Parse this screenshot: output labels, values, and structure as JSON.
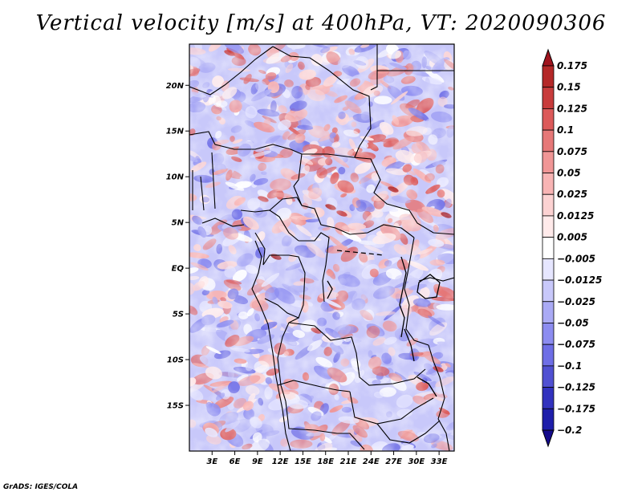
{
  "title": "Vertical velocity [m/s] at 400hPa, VT: 2020090306",
  "credit": "GrADS: IGES/COLA",
  "map": {
    "variable": "Vertical velocity",
    "units": "m/s",
    "level": "400hPa",
    "valid_time": "2020090306",
    "lon_range": [
      0,
      35
    ],
    "lat_range": [
      -20,
      24.5
    ],
    "lat_ticks": [
      {
        "value": 20,
        "label": "20N"
      },
      {
        "value": 15,
        "label": "15N"
      },
      {
        "value": 10,
        "label": "10N"
      },
      {
        "value": 5,
        "label": "5N"
      },
      {
        "value": 0,
        "label": "EQ"
      },
      {
        "value": -5,
        "label": "5S"
      },
      {
        "value": -10,
        "label": "10S"
      },
      {
        "value": -15,
        "label": "15S"
      }
    ],
    "lon_ticks": [
      {
        "value": 3,
        "label": "3E"
      },
      {
        "value": 6,
        "label": "6E"
      },
      {
        "value": 9,
        "label": "9E"
      },
      {
        "value": 12,
        "label": "12E"
      },
      {
        "value": 15,
        "label": "15E"
      },
      {
        "value": 18,
        "label": "18E"
      },
      {
        "value": 21,
        "label": "21E"
      },
      {
        "value": 24,
        "label": "24E"
      },
      {
        "value": 27,
        "label": "27E"
      },
      {
        "value": 30,
        "label": "30E"
      },
      {
        "value": 33,
        "label": "33E"
      }
    ]
  },
  "colorbar": {
    "labels": [
      "0.175",
      "0.15",
      "0.125",
      "0.1",
      "0.075",
      "0.05",
      "0.025",
      "0.0125",
      "0.005",
      "−0.005",
      "−0.0125",
      "−0.025",
      "−0.05",
      "−0.075",
      "−0.1",
      "−0.125",
      "−0.175",
      "−0.2"
    ],
    "colors": [
      "#a0141e",
      "#b42828",
      "#c83c3c",
      "#dc5a5a",
      "#e67878",
      "#f09696",
      "#f8b4b4",
      "#fcd2d2",
      "#ffeaea",
      "#ffffff",
      "#e6e6ff",
      "#c8c8fa",
      "#aaaaf5",
      "#8c8cf0",
      "#6e6ee6",
      "#5050d2",
      "#3232be",
      "#1e1eaa",
      "#140a8c"
    ]
  }
}
